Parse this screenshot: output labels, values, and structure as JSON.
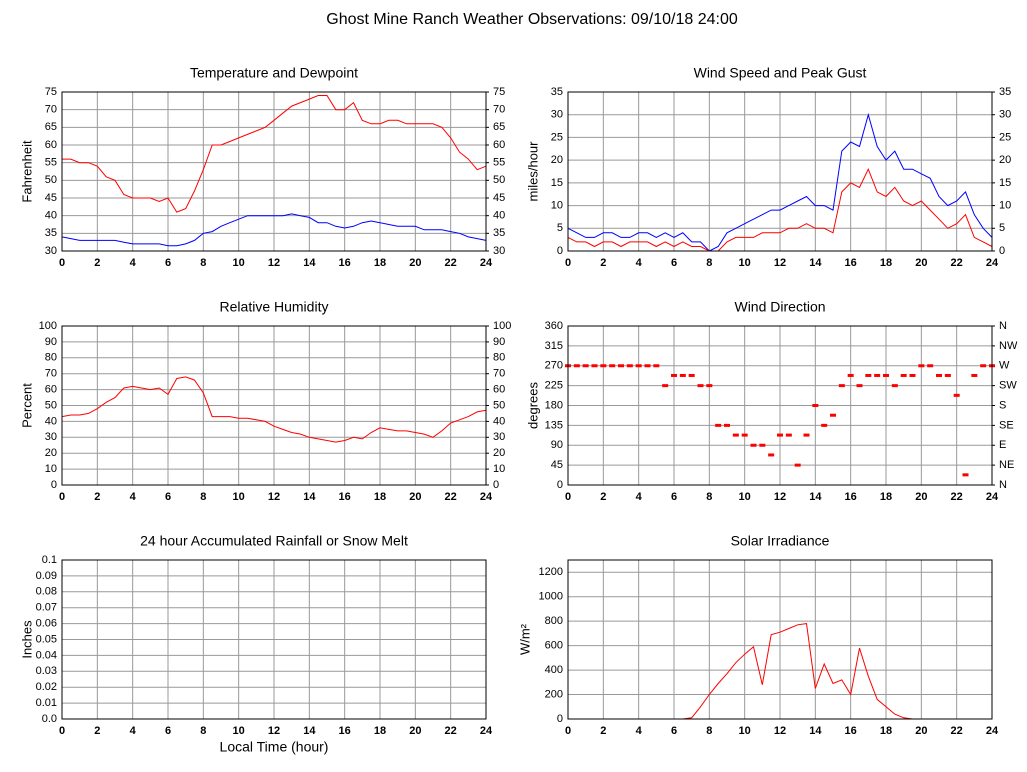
{
  "title": "Ghost Mine Ranch Weather Observations: 09/10/18 24:00",
  "chart_data": [
    {
      "type": "line",
      "title": "Temperature and Dewpoint",
      "ylabel": "Fahrenheit",
      "x": [
        0,
        0.5,
        1,
        1.5,
        2,
        2.5,
        3,
        3.5,
        4,
        4.5,
        5,
        5.5,
        6,
        6.5,
        7,
        7.5,
        8,
        8.5,
        9,
        9.5,
        10,
        10.5,
        11,
        11.5,
        12,
        12.5,
        13,
        13.5,
        14,
        14.5,
        15,
        15.5,
        16,
        16.5,
        17,
        17.5,
        18,
        18.5,
        19,
        19.5,
        20,
        20.5,
        21,
        21.5,
        22,
        22.5,
        23,
        23.5,
        24
      ],
      "series": [
        {
          "color": "#ff0000",
          "values": [
            56,
            56,
            55,
            55,
            54,
            51,
            50,
            46,
            45,
            45,
            45,
            44,
            45,
            41,
            42,
            47,
            53,
            60,
            60,
            61,
            62,
            63,
            64,
            65,
            67,
            69,
            71,
            72,
            73,
            74,
            74,
            70,
            70,
            72,
            67,
            66,
            66,
            67,
            67,
            66,
            66,
            66,
            66,
            65,
            62,
            58,
            56,
            53,
            54
          ]
        },
        {
          "color": "#0000ff",
          "values": [
            34,
            33.5,
            33,
            33,
            33,
            33,
            33,
            32.5,
            32,
            32,
            32,
            32,
            31.5,
            31.5,
            32,
            33,
            35,
            35.5,
            37,
            38,
            39,
            40,
            40,
            40,
            40,
            40,
            40.5,
            40,
            39.5,
            38,
            38,
            37,
            36.5,
            37,
            38,
            38.5,
            38,
            37.5,
            37,
            37,
            37,
            36,
            36,
            36,
            35.5,
            35,
            34,
            33.5,
            33
          ]
        }
      ],
      "xlim": [
        0,
        24
      ],
      "xticks": [
        0,
        2,
        4,
        6,
        8,
        10,
        12,
        14,
        16,
        18,
        20,
        22,
        24
      ],
      "ylim": [
        30,
        75
      ],
      "yticks": [
        30,
        35,
        40,
        45,
        50,
        55,
        60,
        65,
        70,
        75
      ],
      "y2lim": [
        30,
        75
      ],
      "y2ticks": [
        30,
        35,
        40,
        45,
        50,
        55,
        60,
        65,
        70,
        75
      ],
      "grid": true
    },
    {
      "type": "line",
      "title": "Wind Speed and Peak Gust",
      "ylabel": "miles/hour",
      "x": [
        0,
        0.5,
        1,
        1.5,
        2,
        2.5,
        3,
        3.5,
        4,
        4.5,
        5,
        5.5,
        6,
        6.5,
        7,
        7.5,
        8,
        8.5,
        9,
        9.5,
        10,
        10.5,
        11,
        11.5,
        12,
        12.5,
        13,
        13.5,
        14,
        14.5,
        15,
        15.5,
        16,
        16.5,
        17,
        17.5,
        18,
        18.5,
        19,
        19.5,
        20,
        20.5,
        21,
        21.5,
        22,
        22.5,
        23,
        23.5,
        24
      ],
      "series": [
        {
          "color": "#0000ff",
          "values": [
            5,
            4,
            3,
            3,
            4,
            4,
            3,
            3,
            4,
            4,
            3,
            4,
            3,
            4,
            2,
            2,
            0,
            1,
            4,
            5,
            6,
            7,
            8,
            9,
            9,
            10,
            11,
            12,
            10,
            10,
            9,
            22,
            24,
            23,
            30,
            23,
            20,
            22,
            18,
            18,
            17,
            16,
            12,
            10,
            11,
            13,
            8,
            5,
            3
          ]
        },
        {
          "color": "#ff0000",
          "values": [
            3,
            2,
            2,
            1,
            2,
            2,
            1,
            2,
            2,
            2,
            1,
            2,
            1,
            2,
            1,
            1,
            0,
            0,
            2,
            3,
            3,
            3,
            4,
            4,
            4,
            5,
            5,
            6,
            5,
            5,
            4,
            13,
            15,
            14,
            18,
            13,
            12,
            14,
            11,
            10,
            11,
            9,
            7,
            5,
            6,
            8,
            3,
            2,
            1
          ]
        }
      ],
      "xlim": [
        0,
        24
      ],
      "xticks": [
        0,
        2,
        4,
        6,
        8,
        10,
        12,
        14,
        16,
        18,
        20,
        22,
        24
      ],
      "ylim": [
        0,
        35
      ],
      "yticks": [
        0,
        5,
        10,
        15,
        20,
        25,
        30,
        35
      ],
      "y2lim": [
        0,
        35
      ],
      "y2ticks": [
        0,
        5,
        10,
        15,
        20,
        25,
        30,
        35
      ],
      "grid": true
    },
    {
      "type": "line",
      "title": "Relative Humidity",
      "ylabel": "Percent",
      "x": [
        0,
        0.5,
        1,
        1.5,
        2,
        2.5,
        3,
        3.5,
        4,
        4.5,
        5,
        5.5,
        6,
        6.5,
        7,
        7.5,
        8,
        8.5,
        9,
        9.5,
        10,
        10.5,
        11,
        11.5,
        12,
        12.5,
        13,
        13.5,
        14,
        14.5,
        15,
        15.5,
        16,
        16.5,
        17,
        17.5,
        18,
        18.5,
        19,
        19.5,
        20,
        20.5,
        21,
        21.5,
        22,
        22.5,
        23,
        23.5,
        24
      ],
      "series": [
        {
          "color": "#ff0000",
          "values": [
            43,
            44,
            44,
            45,
            48,
            52,
            55,
            61,
            62,
            61,
            60,
            61,
            57,
            67,
            68,
            66,
            58,
            43,
            43,
            43,
            42,
            42,
            41,
            40,
            37,
            35,
            33,
            32,
            30,
            29,
            28,
            27,
            28,
            30,
            29,
            33,
            36,
            35,
            34,
            34,
            33,
            32,
            30,
            34,
            39,
            41,
            43,
            46,
            47
          ]
        }
      ],
      "xlim": [
        0,
        24
      ],
      "xticks": [
        0,
        2,
        4,
        6,
        8,
        10,
        12,
        14,
        16,
        18,
        20,
        22,
        24
      ],
      "ylim": [
        0,
        100
      ],
      "yticks": [
        0,
        10,
        20,
        30,
        40,
        50,
        60,
        70,
        80,
        90,
        100
      ],
      "y2lim": [
        0,
        100
      ],
      "y2ticks": [
        0,
        10,
        20,
        30,
        40,
        50,
        60,
        70,
        80,
        90,
        100
      ],
      "grid": true
    },
    {
      "type": "scatter",
      "title": "Wind Direction",
      "ylabel": "degrees",
      "x": [
        0,
        0.5,
        1,
        1.5,
        2,
        2.5,
        3,
        3.5,
        4,
        4.5,
        5,
        5.5,
        6,
        6.5,
        7,
        7.5,
        8,
        8.5,
        9,
        9.5,
        10,
        10.5,
        11,
        11.5,
        12,
        12.5,
        13,
        13.5,
        14,
        14.5,
        15,
        15.5,
        16,
        16.5,
        17,
        17.5,
        18,
        18.5,
        19,
        19.5,
        20,
        20.5,
        21,
        21.5,
        22,
        22.5,
        23,
        23.5,
        24
      ],
      "series": [
        {
          "color": "#ff0000",
          "values": [
            270,
            270,
            270,
            270,
            270,
            270,
            270,
            270,
            270,
            270,
            270,
            225,
            248,
            248,
            248,
            225,
            225,
            135,
            135,
            113,
            113,
            90,
            90,
            68,
            113,
            113,
            45,
            113,
            180,
            135,
            158,
            225,
            248,
            225,
            248,
            248,
            248,
            225,
            248,
            248,
            270,
            270,
            248,
            248,
            203,
            23,
            248,
            270,
            270
          ]
        }
      ],
      "xlim": [
        0,
        24
      ],
      "xticks": [
        0,
        2,
        4,
        6,
        8,
        10,
        12,
        14,
        16,
        18,
        20,
        22,
        24
      ],
      "ylim": [
        0,
        360
      ],
      "yticks": [
        0,
        45,
        90,
        135,
        180,
        225,
        270,
        315,
        360
      ],
      "y2lim": [
        0,
        360
      ],
      "y2ticks": [
        {
          "value": 0,
          "label": "N"
        },
        {
          "value": 45,
          "label": "NE"
        },
        {
          "value": 90,
          "label": "E"
        },
        {
          "value": 135,
          "label": "SE"
        },
        {
          "value": 180,
          "label": "S"
        },
        {
          "value": 225,
          "label": "SW"
        },
        {
          "value": 270,
          "label": "W"
        },
        {
          "value": 315,
          "label": "NW"
        },
        {
          "value": 360,
          "label": "N"
        }
      ],
      "grid": true
    },
    {
      "type": "line",
      "title": "24 hour Accumulated Rainfall or Snow Melt",
      "ylabel": "Inches",
      "xlabel": "Local Time (hour)",
      "x": [
        0,
        24
      ],
      "series": [
        {
          "color": "#ff0000",
          "values": [
            0,
            0
          ]
        }
      ],
      "xlim": [
        0,
        24
      ],
      "xticks": [
        0,
        2,
        4,
        6,
        8,
        10,
        12,
        14,
        16,
        18,
        20,
        22,
        24
      ],
      "ylim": [
        0,
        0.1
      ],
      "yticks": [
        {
          "value": 0,
          "label": "0.0"
        },
        0.01,
        0.02,
        0.03,
        0.04,
        0.05,
        0.06,
        0.07,
        0.08,
        0.09,
        0.1
      ],
      "grid": true
    },
    {
      "type": "line",
      "title": "Solar Irradiance",
      "ylabel": "W/m²",
      "x": [
        0,
        0.5,
        1,
        1.5,
        2,
        2.5,
        3,
        3.5,
        4,
        4.5,
        5,
        5.5,
        6,
        6.5,
        7,
        7.5,
        8,
        8.5,
        9,
        9.5,
        10,
        10.5,
        11,
        11.5,
        12,
        12.5,
        13,
        13.5,
        14,
        14.5,
        15,
        15.5,
        16,
        16.5,
        17,
        17.5,
        18,
        18.5,
        19,
        19.5,
        20,
        20.5,
        21,
        21.5,
        22,
        22.5,
        23,
        23.5,
        24
      ],
      "series": [
        {
          "color": "#ff0000",
          "values": [
            0,
            0,
            0,
            0,
            0,
            0,
            0,
            0,
            0,
            0,
            0,
            0,
            0,
            0,
            10,
            100,
            200,
            290,
            370,
            460,
            530,
            590,
            280,
            690,
            710,
            740,
            770,
            780,
            250,
            450,
            290,
            320,
            200,
            580,
            350,
            160,
            100,
            40,
            10,
            0,
            0,
            0,
            0,
            0,
            0,
            0,
            0,
            0,
            0
          ]
        }
      ],
      "xlim": [
        0,
        24
      ],
      "xticks": [
        0,
        2,
        4,
        6,
        8,
        10,
        12,
        14,
        16,
        18,
        20,
        22,
        24
      ],
      "ylim": [
        0,
        1300
      ],
      "yticks": [
        0,
        200,
        400,
        600,
        800,
        1000,
        1200
      ],
      "grid": true
    }
  ]
}
